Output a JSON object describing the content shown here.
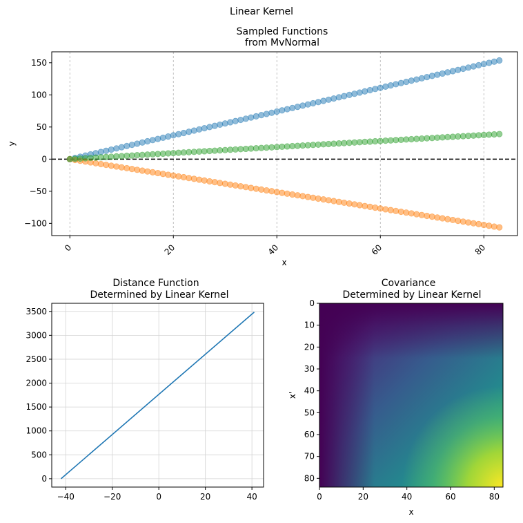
{
  "figure": {
    "suptitle": "Linear Kernel"
  },
  "chart_data": [
    {
      "type": "scatter",
      "title_lines": [
        "Sampled Functions",
        "from MvNormal"
      ],
      "xlabel": "x",
      "ylabel": "y",
      "xlim": [
        -3.5,
        86.5
      ],
      "ylim": [
        -119,
        167
      ],
      "xticks": [
        0,
        20,
        40,
        60,
        80
      ],
      "yticks": [
        -100,
        -50,
        0,
        50,
        100,
        150
      ],
      "xtick_labels": [
        "0",
        "20",
        "40",
        "60",
        "80"
      ],
      "ytick_labels": [
        "−100",
        "−50",
        "0",
        "50",
        "100",
        "150"
      ],
      "grid": "x-dashed",
      "hline_y": 0,
      "x": {
        "start": 0,
        "stop": 83,
        "step": 1
      },
      "series": [
        {
          "slope": 1.85,
          "color": "#1f77b4"
        },
        {
          "slope": -1.28,
          "color": "#ff7f0e"
        },
        {
          "slope": 0.47,
          "color": "#2ca02c"
        }
      ]
    },
    {
      "type": "line",
      "title_lines": [
        "Distance Function",
        "Determined by Linear Kernel"
      ],
      "xlabel": "",
      "ylabel": "",
      "xlim": [
        -46,
        45
      ],
      "ylim": [
        -175,
        3670
      ],
      "xticks": [
        -40,
        -20,
        0,
        20,
        40
      ],
      "yticks": [
        0,
        500,
        1000,
        1500,
        2000,
        2500,
        3000,
        3500
      ],
      "xtick_labels": [
        "−40",
        "−20",
        "0",
        "20",
        "40"
      ],
      "ytick_labels": [
        "0",
        "500",
        "1000",
        "1500",
        "2000",
        "2500",
        "3000",
        "3500"
      ],
      "grid": "on",
      "series": [
        {
          "x": [
            -42,
            41
          ],
          "y": [
            0,
            3486
          ],
          "color": "#1f77b4"
        }
      ]
    },
    {
      "type": "heatmap",
      "title_lines": [
        "Covariance",
        "Determined by Linear Kernel"
      ],
      "xlabel": "x",
      "ylabel": "x'",
      "extent": [
        0,
        84
      ],
      "xticks": [
        0,
        20,
        40,
        60,
        80
      ],
      "yticks": [
        0,
        10,
        20,
        30,
        40,
        50,
        60,
        70,
        80
      ],
      "xtick_labels": [
        "0",
        "20",
        "40",
        "60",
        "80"
      ],
      "ytick_labels": [
        "0",
        "10",
        "20",
        "30",
        "40",
        "50",
        "60",
        "70",
        "80"
      ],
      "colormap": "viridis",
      "value": "x * x'"
    }
  ]
}
